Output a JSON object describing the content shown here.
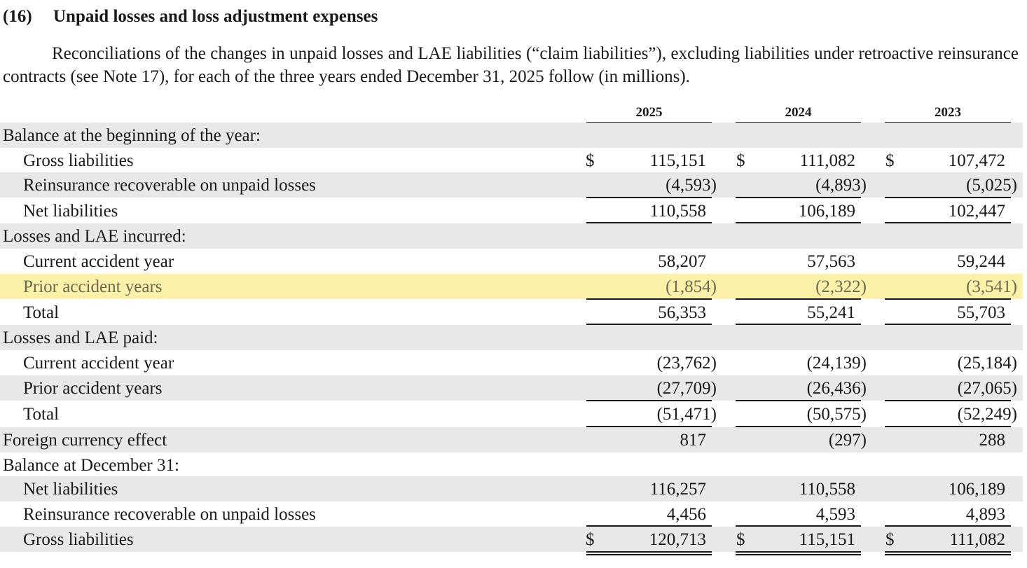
{
  "section": {
    "number": "(16)",
    "title": "Unpaid losses and loss adjustment expenses",
    "intro": "Reconciliations of the changes in unpaid losses and LAE liabilities (“claim liabilities”), excluding liabilities under retroactive reinsurance contracts (see Note 17), for each of the three years ended December 31, 2025 follow (in millions)."
  },
  "table": {
    "years": [
      "2025",
      "2024",
      "2023"
    ],
    "currency_symbol": "$",
    "rows": [
      {
        "label": "Balance at the beginning of the year:",
        "values": [
          "",
          "",
          ""
        ]
      },
      {
        "label": "Gross liabilities",
        "values": [
          "115,151",
          "111,082",
          "107,472"
        ]
      },
      {
        "label": "Reinsurance recoverable on unpaid losses",
        "values": [
          "(4,593)",
          "(4,893)",
          "(5,025)"
        ]
      },
      {
        "label": "Net liabilities",
        "values": [
          "110,558",
          "106,189",
          "102,447"
        ]
      },
      {
        "label": "Losses and LAE incurred:",
        "values": [
          "",
          "",
          ""
        ]
      },
      {
        "label": "Current accident year",
        "values": [
          "58,207",
          "57,563",
          "59,244"
        ]
      },
      {
        "label": "Prior accident years",
        "values": [
          "(1,854)",
          "(2,322)",
          "(3,541)"
        ]
      },
      {
        "label": "Total",
        "values": [
          "56,353",
          "55,241",
          "55,703"
        ]
      },
      {
        "label": "Losses and LAE paid:",
        "values": [
          "",
          "",
          ""
        ]
      },
      {
        "label": "Current accident year",
        "values": [
          "(23,762)",
          "(24,139)",
          "(25,184)"
        ]
      },
      {
        "label": "Prior accident years",
        "values": [
          "(27,709)",
          "(26,436)",
          "(27,065)"
        ]
      },
      {
        "label": "Total",
        "values": [
          "(51,471)",
          "(50,575)",
          "(52,249)"
        ]
      },
      {
        "label": "Foreign currency effect",
        "values": [
          "817",
          "(297)",
          "288"
        ]
      },
      {
        "label": "Balance at December 31:",
        "values": [
          "",
          "",
          ""
        ]
      },
      {
        "label": "Net liabilities",
        "values": [
          "116,257",
          "110,558",
          "106,189"
        ]
      },
      {
        "label": "Reinsurance recoverable on unpaid losses",
        "values": [
          "4,456",
          "4,593",
          "4,893"
        ]
      },
      {
        "label": "Gross liabilities",
        "values": [
          "120,713",
          "115,151",
          "111,082"
        ]
      }
    ]
  },
  "colors": {
    "highlight": "#fbf1a9",
    "shade": "#e8e8e8"
  }
}
